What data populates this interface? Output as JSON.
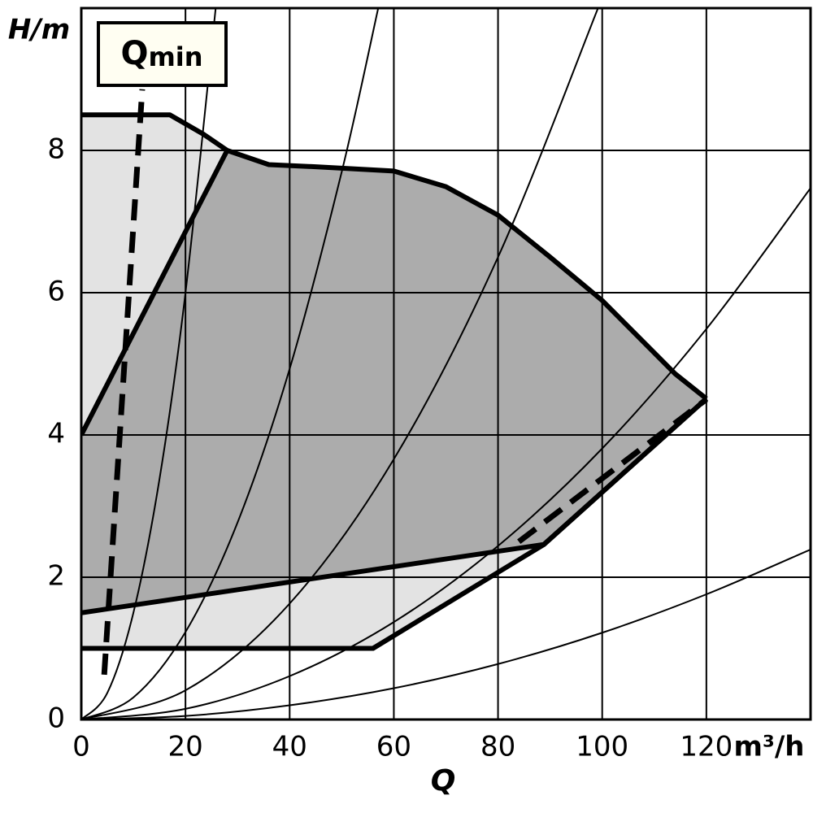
{
  "chart_data": {
    "type": "line",
    "y_label": "H/m",
    "x_label": "Q",
    "x_unit": "m³/h",
    "annotation": {
      "main": "Q",
      "sub": "min"
    },
    "xlim": [
      0,
      140
    ],
    "ylim": [
      0,
      10
    ],
    "xticks": [
      0,
      20,
      40,
      60,
      80,
      100,
      120
    ],
    "yticks": [
      0,
      2,
      4,
      6,
      8
    ],
    "grid": true,
    "series": [
      {
        "kind": "area",
        "color": "#e3e3e3",
        "x": [
          0,
          17,
          23.4,
          28,
          36,
          45,
          60,
          70,
          80,
          90,
          100,
          114,
          120,
          88.8,
          56,
          0
        ],
        "values": [
          8.5,
          8.5,
          8.23,
          8,
          7.8,
          7.77,
          7.71,
          7.49,
          7.09,
          6.5,
          5.89,
          4.86,
          4.51,
          2.46,
          1,
          1
        ]
      },
      {
        "kind": "area",
        "color": "#acacac",
        "x": [
          0,
          28,
          36,
          45,
          60,
          70,
          80,
          90,
          100,
          114,
          120,
          88.8,
          0
        ],
        "values": [
          4,
          8,
          7.8,
          7.77,
          7.71,
          7.49,
          7.09,
          6.5,
          5.89,
          4.86,
          4.51,
          2.46,
          1.5
        ]
      },
      {
        "kind": "curve",
        "color": "#000000",
        "x": [
          0,
          5,
          10,
          15,
          20,
          25.8
        ],
        "values": [
          0,
          0.375,
          1.5,
          3.375,
          6,
          10
        ]
      },
      {
        "kind": "curve",
        "color": "#000000",
        "x": [
          0,
          10,
          20,
          30,
          40,
          50,
          57
        ],
        "values": [
          0,
          0.31,
          1.23,
          2.77,
          4.93,
          7.7,
          10
        ]
      },
      {
        "kind": "curve",
        "color": "#000000",
        "x": [
          0,
          20,
          40,
          60,
          80,
          99.2
        ],
        "values": [
          0,
          0.41,
          1.63,
          3.66,
          6.5,
          10
        ]
      },
      {
        "kind": "curve",
        "color": "#000000",
        "x": [
          0,
          20,
          40,
          60,
          80,
          100,
          120,
          140
        ],
        "values": [
          0,
          0.15,
          0.61,
          1.37,
          2.44,
          3.81,
          5.49,
          7.47
        ]
      },
      {
        "kind": "curve",
        "color": "#000000",
        "x": [
          0,
          20,
          40,
          60,
          80,
          100,
          120,
          140
        ],
        "values": [
          0,
          0.05,
          0.2,
          0.44,
          0.78,
          1.22,
          1.76,
          2.39
        ]
      },
      {
        "kind": "thick",
        "color": "#000000",
        "x": [
          0,
          17,
          23.4,
          28,
          36,
          45,
          60,
          70,
          80,
          90,
          100,
          114,
          120
        ],
        "values": [
          8.5,
          8.5,
          8.23,
          8,
          7.8,
          7.77,
          7.71,
          7.49,
          7.09,
          6.5,
          5.89,
          4.86,
          4.51
        ]
      },
      {
        "kind": "thick",
        "color": "#000000",
        "x": [
          0,
          28
        ],
        "values": [
          4,
          8
        ]
      },
      {
        "kind": "thick",
        "color": "#000000",
        "x": [
          0,
          88.8,
          120
        ],
        "values": [
          1.5,
          2.46,
          4.51
        ]
      },
      {
        "kind": "thick",
        "color": "#000000",
        "x": [
          0,
          56,
          88.8,
          120
        ],
        "values": [
          1,
          1,
          2.46,
          4.51
        ]
      },
      {
        "kind": "dashed",
        "color": "#000000",
        "x": [
          4.4,
          11.7
        ],
        "values": [
          0.63,
          8.86
        ]
      },
      {
        "kind": "dashed",
        "color": "#000000",
        "x": [
          84,
          120
        ],
        "values": [
          2.5,
          4.5
        ]
      }
    ]
  }
}
